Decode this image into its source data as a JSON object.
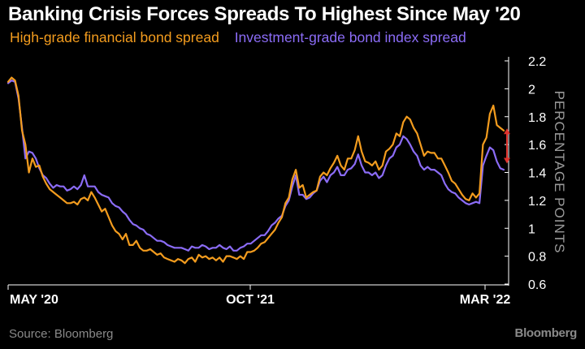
{
  "title": "Banking Crisis Forces Spreads To Highest Since May '20",
  "source": "Source: Bloomberg",
  "brand": "Bloomberg",
  "colors": {
    "background": "#000000",
    "high_grade": "#f39c1e",
    "index": "#8b6cf6",
    "annotation_arrow": "#e0322c",
    "axis_text": "#ffffff",
    "muted_text": "#8a8a8a"
  },
  "chart_data": {
    "type": "line",
    "title": "Banking Crisis Forces Spreads To Highest Since May '20",
    "xlabel": "",
    "ylabel": "PERCENTAGE POINTS",
    "ylim": [
      0.6,
      2.2
    ],
    "yticks": [
      "2.2",
      "2",
      "1.8",
      "1.6",
      "1.4",
      "1.2",
      "1",
      "0.8",
      "0.6"
    ],
    "xticks": [
      {
        "label": "MAY '20",
        "x": "2020-05"
      },
      {
        "label": "OCT '21",
        "x": "2021-10"
      },
      {
        "label": "MAR '22",
        "x": "2022-03"
      }
    ],
    "grid": false,
    "legend_position": "top-left",
    "annotation": "double-headed arrow between the two series at the latest point",
    "series": [
      {
        "name": "High-grade financial bond spread",
        "color": "#f39c1e",
        "values": [
          2.05,
          2.08,
          2.06,
          1.95,
          1.7,
          1.6,
          1.4,
          1.5,
          1.44,
          1.45,
          1.37,
          1.32,
          1.28,
          1.26,
          1.24,
          1.22,
          1.2,
          1.18,
          1.18,
          1.19,
          1.17,
          1.21,
          1.22,
          1.2,
          1.26,
          1.22,
          1.17,
          1.12,
          1.14,
          1.08,
          1.02,
          0.98,
          0.96,
          0.92,
          0.96,
          0.88,
          0.88,
          0.91,
          0.86,
          0.84,
          0.84,
          0.85,
          0.83,
          0.81,
          0.82,
          0.79,
          0.78,
          0.77,
          0.76,
          0.78,
          0.77,
          0.75,
          0.78,
          0.79,
          0.76,
          0.81,
          0.79,
          0.8,
          0.78,
          0.79,
          0.77,
          0.79,
          0.76,
          0.8,
          0.8,
          0.79,
          0.78,
          0.8,
          0.78,
          0.83,
          0.83,
          0.84,
          0.86,
          0.89,
          0.9,
          0.93,
          0.96,
          0.99,
          1.04,
          1.08,
          1.18,
          1.22,
          1.35,
          1.42,
          1.29,
          1.31,
          1.22,
          1.24,
          1.26,
          1.27,
          1.37,
          1.4,
          1.38,
          1.43,
          1.47,
          1.52,
          1.45,
          1.42,
          1.5,
          1.5,
          1.56,
          1.66,
          1.55,
          1.48,
          1.47,
          1.45,
          1.48,
          1.42,
          1.45,
          1.55,
          1.57,
          1.6,
          1.68,
          1.66,
          1.76,
          1.8,
          1.78,
          1.72,
          1.68,
          1.6,
          1.52,
          1.55,
          1.54,
          1.54,
          1.5,
          1.5,
          1.45,
          1.4,
          1.34,
          1.32,
          1.28,
          1.24,
          1.21,
          1.2,
          1.25,
          1.22,
          1.25,
          1.6,
          1.65,
          1.82,
          1.88,
          1.74,
          1.72,
          1.7
        ]
      },
      {
        "name": "Investment-grade bond index spread",
        "color": "#8b6cf6",
        "values": [
          2.04,
          2.06,
          2.05,
          1.93,
          1.72,
          1.5,
          1.55,
          1.54,
          1.5,
          1.43,
          1.38,
          1.36,
          1.32,
          1.29,
          1.31,
          1.3,
          1.3,
          1.27,
          1.28,
          1.3,
          1.28,
          1.31,
          1.38,
          1.3,
          1.3,
          1.3,
          1.26,
          1.24,
          1.23,
          1.22,
          1.18,
          1.16,
          1.15,
          1.12,
          1.1,
          1.06,
          1.03,
          1.02,
          1.0,
          0.99,
          0.96,
          0.95,
          0.93,
          0.91,
          0.91,
          0.9,
          0.88,
          0.87,
          0.86,
          0.86,
          0.86,
          0.85,
          0.84,
          0.87,
          0.86,
          0.86,
          0.88,
          0.87,
          0.85,
          0.86,
          0.86,
          0.88,
          0.86,
          0.85,
          0.87,
          0.84,
          0.84,
          0.86,
          0.87,
          0.89,
          0.89,
          0.91,
          0.93,
          0.95,
          0.95,
          0.98,
          1.02,
          1.04,
          1.07,
          1.09,
          1.16,
          1.2,
          1.3,
          1.38,
          1.24,
          1.24,
          1.21,
          1.22,
          1.25,
          1.27,
          1.34,
          1.37,
          1.33,
          1.38,
          1.4,
          1.44,
          1.38,
          1.38,
          1.42,
          1.43,
          1.46,
          1.53,
          1.45,
          1.4,
          1.4,
          1.38,
          1.4,
          1.36,
          1.38,
          1.45,
          1.5,
          1.52,
          1.58,
          1.6,
          1.66,
          1.64,
          1.6,
          1.55,
          1.52,
          1.45,
          1.42,
          1.44,
          1.42,
          1.42,
          1.4,
          1.38,
          1.32,
          1.28,
          1.26,
          1.25,
          1.22,
          1.2,
          1.18,
          1.17,
          1.18,
          1.19,
          1.18,
          1.45,
          1.52,
          1.58,
          1.56,
          1.48,
          1.43,
          1.42
        ]
      }
    ]
  }
}
